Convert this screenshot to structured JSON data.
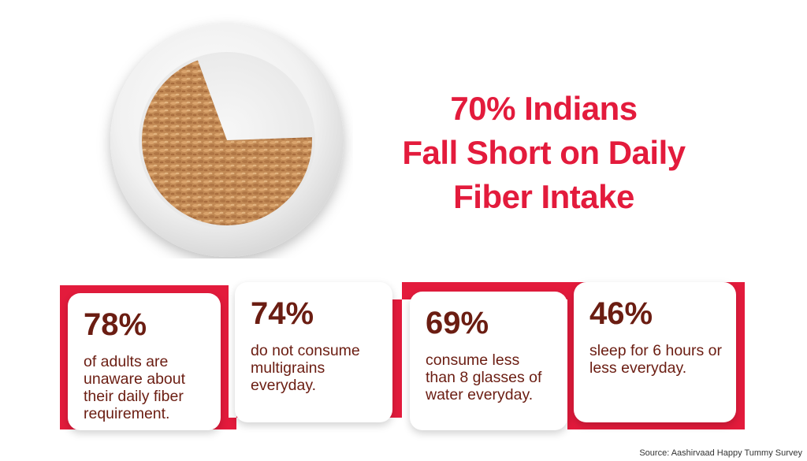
{
  "headline": {
    "line1": "70% Indians",
    "line2": "Fall Short on Daily",
    "line3": "Fiber Intake"
  },
  "stats": [
    {
      "value": "78%",
      "description": "of adults are unaware about their daily fiber requirement."
    },
    {
      "value": "74%",
      "description": "do not consume multigrains everyday."
    },
    {
      "value": "69%",
      "description": "consume less than 8 glasses of water everyday."
    },
    {
      "value": "46%",
      "description": "sleep for 6 hours or less everyday."
    }
  ],
  "source": "Source: Aashirvaad Happy Tummy Survey",
  "illustration": {
    "icon": "plate-of-grains-icon",
    "filled_fraction": 0.7
  },
  "colors": {
    "accent_red": "#e31b3c",
    "stat_text": "#6b1d12",
    "grain": "#c8915a"
  }
}
